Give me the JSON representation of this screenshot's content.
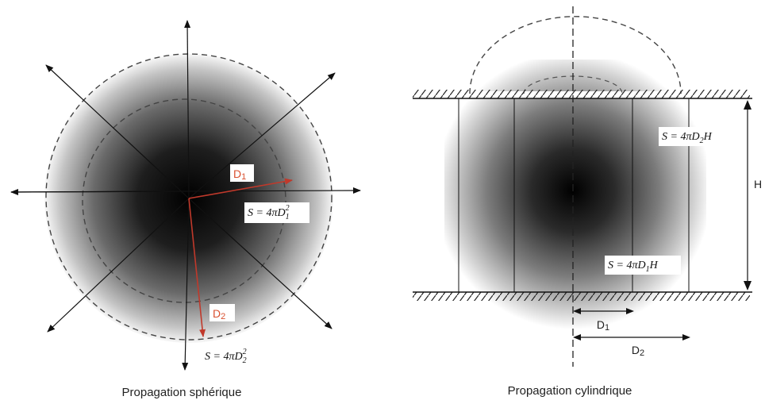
{
  "spherical": {
    "caption": "Propagation sphérique",
    "d1_label": "D",
    "d1_sub": "1",
    "d2_label": "D",
    "d2_sub": "2",
    "formula1": {
      "lhs": "S = 4πD",
      "sub": "1",
      "sup": "2"
    },
    "formula2": {
      "lhs": "S = 4πD",
      "sub": "2",
      "sup": "2"
    }
  },
  "cylindrical": {
    "caption": "Propagation cylindrique",
    "height_label": "H",
    "formula1": {
      "lhs": "S = 4πD",
      "sub": "1",
      "tail": "H"
    },
    "formula2": {
      "lhs": "S = 4πD",
      "sub": "2",
      "tail": "H"
    },
    "d1_label": "D",
    "d1_sub": "1",
    "d2_label": "D",
    "d2_sub": "2"
  },
  "colors": {
    "radius_arrow": "#c0392b",
    "radius_label": "#d9502f",
    "line": "#111111",
    "dashed": "#444444"
  }
}
